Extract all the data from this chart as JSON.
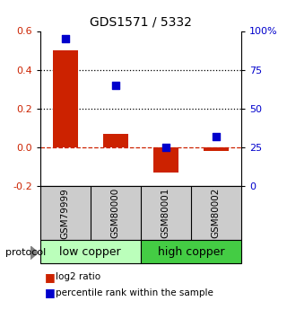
{
  "title": "GDS1571 / 5332",
  "samples": [
    "GSM79999",
    "GSM80000",
    "GSM80001",
    "GSM80002"
  ],
  "log2_ratio": [
    0.5,
    0.07,
    -0.13,
    -0.02
  ],
  "percentile_rank": [
    95,
    65,
    25,
    32
  ],
  "left_ylim": [
    -0.2,
    0.6
  ],
  "right_ylim": [
    0,
    100
  ],
  "left_yticks": [
    -0.2,
    0.0,
    0.2,
    0.4,
    0.6
  ],
  "right_yticks": [
    0,
    25,
    50,
    75,
    100
  ],
  "right_yticklabels": [
    "0",
    "25",
    "50",
    "75",
    "100%"
  ],
  "dotted_lines": [
    0.2,
    0.4
  ],
  "dashed_zero": 0.0,
  "bar_color": "#cc2200",
  "scatter_color": "#0000cc",
  "group_labels": [
    "low copper",
    "high copper"
  ],
  "group_ranges": [
    [
      0,
      2
    ],
    [
      2,
      4
    ]
  ],
  "group_colors_light": "#bbffbb",
  "group_colors_dark": "#44cc44",
  "sample_box_color": "#cccccc",
  "protocol_label": "protocol",
  "legend_items": [
    {
      "label": "log2 ratio",
      "color": "#cc2200"
    },
    {
      "label": "percentile rank within the sample",
      "color": "#0000cc"
    }
  ],
  "bar_width": 0.5,
  "scatter_size": 28,
  "title_fontsize": 10,
  "tick_fontsize": 8,
  "sample_fontsize": 7.5,
  "group_fontsize": 9,
  "legend_fontsize": 7.5,
  "protocol_fontsize": 8
}
